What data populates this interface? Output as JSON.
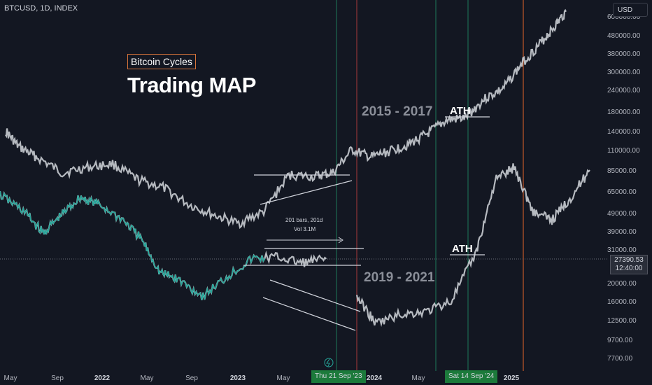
{
  "header": {
    "symbol": "BTCUSD, 1D, INDEX"
  },
  "currency_button": "USD",
  "title_badge": "Bitcoin Cycles",
  "title": "Trading MAP",
  "annotations": {
    "cycle_top": "2015 - 2017",
    "cycle_bottom": "2019 - 2021",
    "ath_top": "ATH",
    "ath_bottom": "ATH",
    "measure_bars": "201 bars, 201d",
    "measure_vol": "Vol 3.1M"
  },
  "current_price": {
    "price": "27390.53",
    "countdown": "12:40:00"
  },
  "highlighted_dates": [
    "Thu 21 Sep '23",
    "Sat 14 Sep '24"
  ],
  "colors": {
    "background": "#131722",
    "candles": "#c9ccd2",
    "highlight_line": "#26a69a",
    "cycle_marker_green": "#1e7a5a",
    "cycle_marker_orange": "#e6642a",
    "cycle_marker_red": "#a83a3a",
    "badge_border": "#d6733a",
    "date_tag": "#1c7a3b"
  },
  "chart_data": {
    "type": "line",
    "scale": "log",
    "price_axis_ticks": [
      "600000.00",
      "480000.00",
      "380000.00",
      "300000.00",
      "240000.00",
      "180000.00",
      "140000.00",
      "110000.00",
      "85000.00",
      "65000.00",
      "49000.00",
      "39000.00",
      "31000.00",
      "20000.00",
      "16000.00",
      "12500.00",
      "9700.00",
      "7700.00"
    ],
    "time_axis_ticks": [
      "May",
      "Sep",
      "2022",
      "May",
      "Sep",
      "2023",
      "May",
      "2024",
      "May",
      "2025"
    ],
    "series": [
      {
        "description_none": "",
        "x_fraction": [
          0,
          0.02,
          0.05,
          0.09,
          0.13,
          0.17,
          0.21,
          0.25,
          0.29,
          0.33,
          0.37,
          0.41,
          0.45,
          0.49,
          0.52,
          0.55,
          0.58,
          0.61,
          0.64,
          0.67,
          0.7,
          0.73,
          0.76,
          0.79,
          0.82,
          0.85,
          0.87,
          0.89
        ],
        "values": [
          140000,
          115000,
          100000,
          82000,
          88000,
          92000,
          75000,
          68000,
          55000,
          48000,
          43000,
          50000,
          80000,
          78000,
          82000,
          110000,
          100000,
          108000,
          118000,
          135000,
          160000,
          165000,
          210000,
          240000,
          330000,
          430000,
          520000,
          640000
        ]
      },
      {
        "x_fraction": [
          0,
          0.04,
          0.07,
          0.1,
          0.13,
          0.16,
          0.2,
          0.23,
          0.26,
          0.29,
          0.33,
          0.37,
          0.41,
          0.45,
          0.49,
          0.53
        ],
        "values": [
          62000,
          50000,
          38000,
          48000,
          60000,
          55000,
          45000,
          35000,
          23000,
          21000,
          17000,
          22000,
          27500,
          28000,
          26000,
          27390
        ]
      },
      {
        "x_fraction": [
          0.53,
          0.56,
          0.6,
          0.64,
          0.68,
          0.72,
          0.75,
          0.78,
          0.81,
          0.84,
          0.87,
          0.9
        ],
        "values": [
          17000,
          12000,
          13500,
          14000,
          16000,
          30000,
          75000,
          88000,
          50000,
          45000,
          60000,
          85000
        ]
      }
    ]
  }
}
